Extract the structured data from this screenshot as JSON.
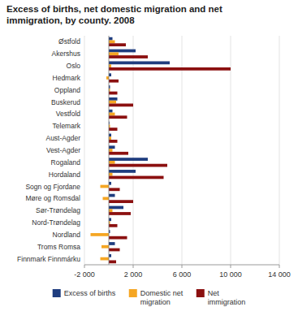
{
  "chart_data": {
    "type": "bar",
    "orientation": "horizontal",
    "title": "Excess of births, net domestic migration and net\nimmigration, by county. 2008",
    "categories": [
      "Østfold",
      "Akershus",
      "Oslo",
      "Hedmark",
      "Oppland",
      "Buskerud",
      "Vestfold",
      "Telemark",
      "Aust-Agder",
      "Vest-Agder",
      "Rogaland",
      "Hordaland",
      "Sogn og Fjordane",
      "Møre og Romsdal",
      "Sør-Trøndelag",
      "Nord-Trøndelag",
      "Nordland",
      "Troms Romsa",
      "Finnmark Finnmárku"
    ],
    "series": [
      {
        "name": "Excess of births",
        "color": "#1f3d7f",
        "values": [
          300,
          2200,
          5000,
          200,
          100,
          700,
          300,
          50,
          200,
          500,
          3200,
          2200,
          200,
          500,
          1200,
          200,
          100,
          500,
          200
        ]
      },
      {
        "name": "Domestic net\nmigration",
        "color": "#f5a623",
        "values": [
          500,
          800,
          200,
          -200,
          100,
          600,
          500,
          100,
          200,
          300,
          500,
          300,
          -700,
          -500,
          300,
          100,
          -1500,
          -600,
          -700
        ]
      },
      {
        "name": "Net\nimmigration",
        "color": "#8b1010",
        "values": [
          1400,
          3200,
          10000,
          800,
          700,
          2000,
          1500,
          700,
          700,
          1600,
          4800,
          4500,
          900,
          2000,
          1800,
          700,
          1500,
          900,
          600
        ]
      }
    ],
    "xlim": [
      -2000,
      14000
    ],
    "xticks": [
      {
        "value": -2000,
        "label": "-2 000"
      },
      {
        "value": 2000,
        "label": "2 000"
      },
      {
        "value": 6000,
        "label": "6 000"
      },
      {
        "value": 10000,
        "label": "10 000"
      },
      {
        "value": 14000,
        "label": "14 000"
      }
    ],
    "grid": true,
    "legend": "bottom"
  }
}
